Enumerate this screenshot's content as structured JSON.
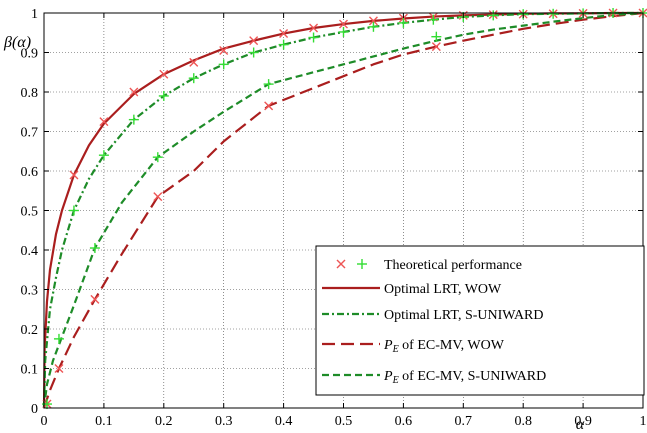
{
  "chart_data": {
    "type": "line",
    "xlabel": "α",
    "ylabel": "β(α)",
    "xlim": [
      0,
      1
    ],
    "ylim": [
      0,
      1
    ],
    "grid": true,
    "legend_position": "bottom-right",
    "x_ticks": [
      "0",
      "0.1",
      "0.2",
      "0.3",
      "0.4",
      "0.5",
      "0.6",
      "0.7",
      "0.8",
      "0.9",
      "1"
    ],
    "y_ticks": [
      "0",
      "0.1",
      "0.2",
      "0.3",
      "0.4",
      "0.5",
      "0.6",
      "0.7",
      "0.8",
      "0.9",
      "1"
    ],
    "colors": {
      "wow": "#aa1e1e",
      "suniward": "#1e8c28",
      "theoretical_x": "#ee5555",
      "theoretical_plus": "#33dd33"
    },
    "series": [
      {
        "name": "Optimal LRT, WOW",
        "style": "solid",
        "color_key": "wow",
        "x": [
          0,
          0.001,
          0.005,
          0.01,
          0.02,
          0.03,
          0.05,
          0.075,
          0.1,
          0.15,
          0.2,
          0.25,
          0.3,
          0.35,
          0.4,
          0.45,
          0.5,
          0.55,
          0.6,
          0.65,
          0.7,
          0.75,
          0.8,
          0.85,
          0.9,
          0.95,
          1
        ],
        "y": [
          0,
          0.15,
          0.27,
          0.35,
          0.44,
          0.5,
          0.59,
          0.665,
          0.72,
          0.795,
          0.845,
          0.88,
          0.91,
          0.93,
          0.948,
          0.962,
          0.972,
          0.98,
          0.986,
          0.991,
          0.994,
          0.996,
          0.998,
          0.999,
          0.999,
          1,
          1
        ]
      },
      {
        "name": "Optimal LRT, S-UNIWARD",
        "style": "dashdot",
        "color_key": "suniward",
        "x": [
          0,
          0.002,
          0.01,
          0.02,
          0.03,
          0.05,
          0.075,
          0.1,
          0.15,
          0.2,
          0.25,
          0.3,
          0.35,
          0.4,
          0.45,
          0.5,
          0.55,
          0.6,
          0.65,
          0.7,
          0.75,
          0.8,
          0.85,
          0.9,
          0.95,
          1
        ],
        "y": [
          0,
          0.12,
          0.25,
          0.33,
          0.4,
          0.5,
          0.58,
          0.64,
          0.73,
          0.79,
          0.835,
          0.87,
          0.9,
          0.92,
          0.938,
          0.952,
          0.965,
          0.975,
          0.983,
          0.99,
          0.994,
          0.997,
          0.998,
          0.999,
          1,
          1
        ]
      },
      {
        "name": "P_E of EC-MV, WOW",
        "style": "longdash",
        "color_key": "wow",
        "x": [
          0,
          0.01,
          0.025,
          0.05,
          0.085,
          0.13,
          0.19,
          0.25,
          0.3,
          0.375,
          0.45,
          0.5,
          0.55,
          0.6,
          0.655,
          0.7,
          0.75,
          0.8,
          0.85,
          0.9,
          0.95,
          1
        ],
        "y": [
          0,
          0.045,
          0.1,
          0.18,
          0.275,
          0.39,
          0.535,
          0.6,
          0.675,
          0.765,
          0.81,
          0.84,
          0.87,
          0.895,
          0.915,
          0.93,
          0.945,
          0.96,
          0.972,
          0.983,
          0.992,
          1
        ]
      },
      {
        "name": "P_E of EC-MV, S-UNIWARD",
        "style": "dashed",
        "color_key": "suniward",
        "x": [
          0,
          0.005,
          0.015,
          0.03,
          0.05,
          0.085,
          0.13,
          0.19,
          0.25,
          0.3,
          0.375,
          0.45,
          0.5,
          0.55,
          0.6,
          0.655,
          0.7,
          0.75,
          0.8,
          0.85,
          0.9,
          0.95,
          1
        ],
        "y": [
          0,
          0.06,
          0.12,
          0.18,
          0.26,
          0.405,
          0.52,
          0.635,
          0.7,
          0.75,
          0.82,
          0.85,
          0.87,
          0.89,
          0.91,
          0.93,
          0.945,
          0.958,
          0.968,
          0.978,
          0.987,
          0.995,
          1
        ]
      }
    ],
    "markers": [
      {
        "name": "theoretical_x",
        "shape": "x",
        "color_key": "theoretical_x",
        "points": [
          [
            0.005,
            0.01
          ],
          [
            0.025,
            0.1
          ],
          [
            0.05,
            0.59
          ],
          [
            0.085,
            0.275
          ],
          [
            0.1,
            0.725
          ],
          [
            0.15,
            0.8
          ],
          [
            0.19,
            0.535
          ],
          [
            0.2,
            0.845
          ],
          [
            0.25,
            0.875
          ],
          [
            0.3,
            0.905
          ],
          [
            0.35,
            0.93
          ],
          [
            0.375,
            0.765
          ],
          [
            0.4,
            0.948
          ],
          [
            0.45,
            0.962
          ],
          [
            0.5,
            0.972
          ],
          [
            0.55,
            0.98
          ],
          [
            0.6,
            0.987
          ],
          [
            0.65,
            0.99
          ],
          [
            0.655,
            0.915
          ],
          [
            0.7,
            0.994
          ],
          [
            0.75,
            0.996
          ],
          [
            0.8,
            0.997
          ],
          [
            0.85,
            0.998
          ],
          [
            0.9,
            0.999
          ],
          [
            0.95,
            1
          ],
          [
            1,
            1
          ]
        ]
      },
      {
        "name": "theoretical_plus",
        "shape": "plus",
        "color_key": "theoretical_plus",
        "points": [
          [
            0.005,
            0.01
          ],
          [
            0.025,
            0.175
          ],
          [
            0.05,
            0.5
          ],
          [
            0.085,
            0.405
          ],
          [
            0.1,
            0.64
          ],
          [
            0.15,
            0.73
          ],
          [
            0.19,
            0.635
          ],
          [
            0.2,
            0.79
          ],
          [
            0.25,
            0.835
          ],
          [
            0.3,
            0.87
          ],
          [
            0.35,
            0.9
          ],
          [
            0.375,
            0.82
          ],
          [
            0.4,
            0.92
          ],
          [
            0.45,
            0.938
          ],
          [
            0.5,
            0.952
          ],
          [
            0.55,
            0.965
          ],
          [
            0.6,
            0.975
          ],
          [
            0.65,
            0.983
          ],
          [
            0.655,
            0.94
          ],
          [
            0.7,
            0.99
          ],
          [
            0.75,
            0.994
          ],
          [
            0.8,
            0.997
          ],
          [
            0.85,
            0.998
          ],
          [
            0.9,
            0.999
          ],
          [
            0.95,
            1
          ],
          [
            1,
            1
          ]
        ]
      }
    ],
    "legend": {
      "theoretical": "Theoretical performance",
      "lrt_wow": "Optimal LRT, WOW",
      "lrt_suniward": "Optimal LRT, S-UNIWARD",
      "pe_symbol": "P",
      "pe_subscript": "E",
      "pe_wow_suffix": " of EC-MV, WOW",
      "pe_suniward_suffix": " of EC-MV, S-UNIWARD"
    }
  }
}
